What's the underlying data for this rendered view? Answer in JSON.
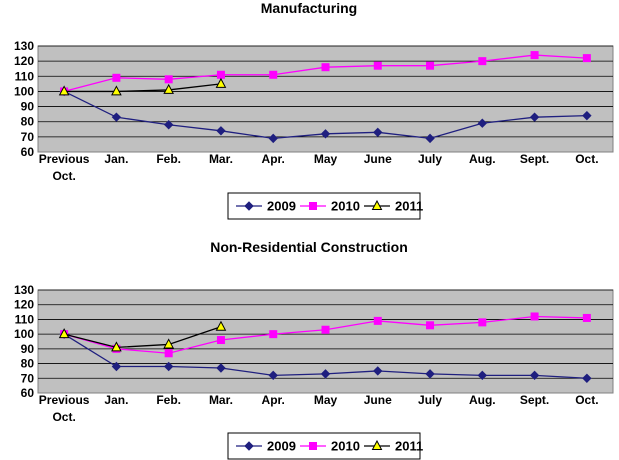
{
  "chart_data": [
    {
      "type": "line",
      "title": "Manufacturing",
      "categories": [
        "Previous Oct.",
        "Jan.",
        "Feb.",
        "Mar.",
        "Apr.",
        "May",
        "June",
        "July",
        "Aug.",
        "Sept.",
        "Oct."
      ],
      "ylim": [
        60,
        130
      ],
      "yticks": [
        60,
        70,
        80,
        90,
        100,
        110,
        120,
        130
      ],
      "grid": true,
      "legend_position": "bottom-center",
      "series": [
        {
          "name": "2009",
          "color": "#1F1F7F",
          "marker": "diamond",
          "values": [
            100,
            83,
            78,
            74,
            69,
            72,
            73,
            69,
            79,
            83,
            84
          ]
        },
        {
          "name": "2010",
          "color": "#FF00FF",
          "marker": "square",
          "values": [
            100,
            109,
            108,
            111,
            111,
            116,
            117,
            117,
            120,
            124,
            122
          ]
        },
        {
          "name": "2011",
          "color": "#000000",
          "marker": "triangle",
          "values": [
            100,
            100,
            101,
            105,
            null,
            null,
            null,
            null,
            null,
            null,
            null
          ]
        }
      ]
    },
    {
      "type": "line",
      "title": "Non-Residential Construction",
      "categories": [
        "Previous Oct.",
        "Jan.",
        "Feb.",
        "Mar.",
        "Apr.",
        "May",
        "June",
        "July",
        "Aug.",
        "Sept.",
        "Oct."
      ],
      "ylim": [
        60,
        130
      ],
      "yticks": [
        60,
        70,
        80,
        90,
        100,
        110,
        120,
        130
      ],
      "grid": true,
      "legend_position": "bottom-center",
      "series": [
        {
          "name": "2009",
          "color": "#1F1F7F",
          "marker": "diamond",
          "values": [
            100,
            78,
            78,
            77,
            72,
            73,
            75,
            73,
            72,
            72,
            70
          ]
        },
        {
          "name": "2010",
          "color": "#FF00FF",
          "marker": "square",
          "values": [
            100,
            90,
            87,
            96,
            100,
            103,
            109,
            106,
            108,
            112,
            111
          ]
        },
        {
          "name": "2011",
          "color": "#000000",
          "marker": "triangle",
          "values": [
            100,
            91,
            93,
            105,
            null,
            null,
            null,
            null,
            null,
            null,
            null
          ]
        }
      ]
    }
  ]
}
